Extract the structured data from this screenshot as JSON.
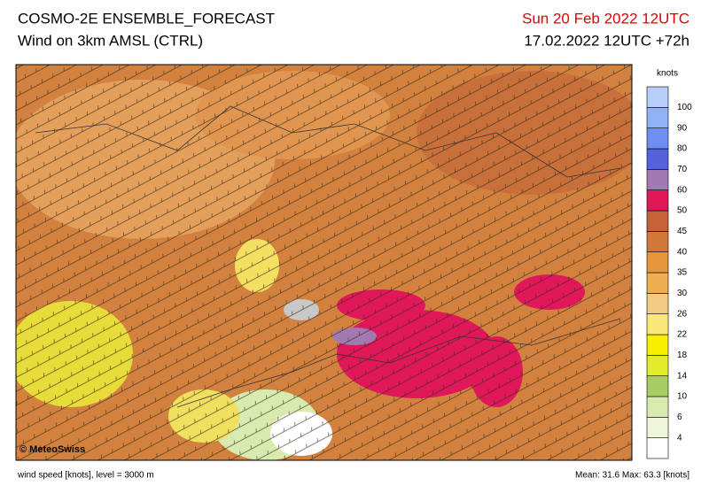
{
  "header": {
    "title": "COSMO-2E ENSEMBLE_FORECAST",
    "subtitle": "Wind on 3km AMSL (CTRL)",
    "valid_time": "Sun 20 Feb 2022 12UTC",
    "run": "17.02.2022 12UTC +72h"
  },
  "colorbar": {
    "unit": "knots",
    "ticks": [
      4,
      6,
      10,
      14,
      18,
      22,
      26,
      30,
      35,
      40,
      45,
      50,
      60,
      70,
      80,
      90,
      100
    ],
    "colors": [
      "#ffffff",
      "#eef5da",
      "#d8eab0",
      "#a8cc64",
      "#e2ec2a",
      "#f8ee00",
      "#fae77a",
      "#f2cb82",
      "#eeae52",
      "#e4953e",
      "#d2783a",
      "#c4623a",
      "#e0185a",
      "#a27ab2",
      "#5462dc",
      "#6e8ef0",
      "#92b2f8",
      "#b6cef8"
    ]
  },
  "map": {
    "credit": "© MeteoSwiss"
  },
  "footer": {
    "level": "wind speed [knots], level = 3000 m",
    "stats": "Mean:  31.6 Max:  63.3 [knots]"
  }
}
